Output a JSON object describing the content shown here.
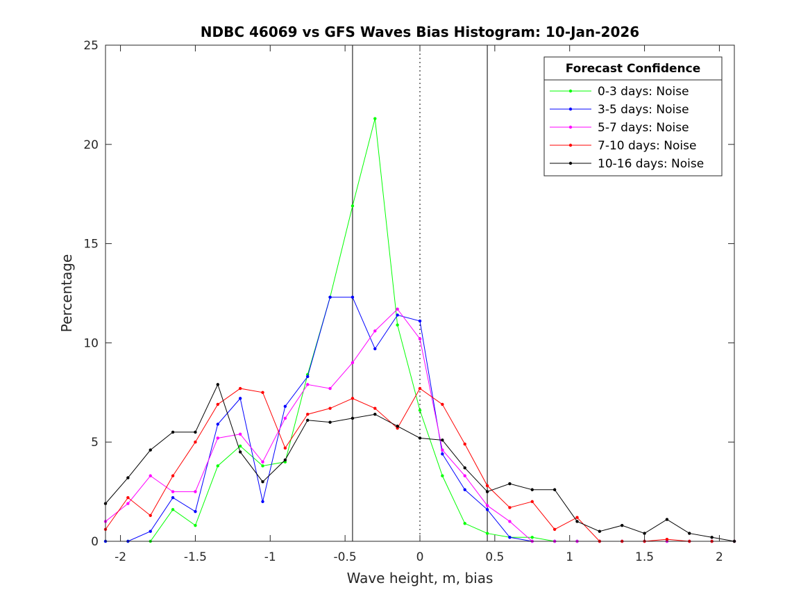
{
  "chart_data": {
    "type": "line",
    "title": "NDBC 46069 vs GFS Waves Bias Histogram: 10-Jan-2026",
    "xlabel": "Wave height, m, bias",
    "ylabel": "Percentage",
    "xlim": [
      -2.1,
      2.1
    ],
    "ylim": [
      0,
      25
    ],
    "xticks": [
      -2,
      -1.5,
      -1,
      -0.5,
      0,
      0.5,
      1,
      1.5,
      2
    ],
    "xtick_labels": [
      "-2",
      "-1.5",
      "-1",
      "-0.5",
      "0",
      "0.5",
      "1",
      "1.5",
      "2"
    ],
    "yticks": [
      0,
      5,
      10,
      15,
      20,
      25
    ],
    "ytick_labels": [
      "0",
      "5",
      "10",
      "15",
      "20",
      "25"
    ],
    "legend_title": "Forecast Confidence",
    "legend_location": "top-right",
    "reference_lines": [
      {
        "x": -0.45,
        "style": "solid"
      },
      {
        "x": 0,
        "style": "dotted"
      },
      {
        "x": 0.45,
        "style": "solid"
      }
    ],
    "x": [
      -2.1,
      -1.95,
      -1.8,
      -1.65,
      -1.5,
      -1.35,
      -1.2,
      -1.05,
      -0.9,
      -0.75,
      -0.6,
      -0.45,
      -0.3,
      -0.15,
      0,
      0.15,
      0.3,
      0.45,
      0.6,
      0.75,
      0.9,
      1.05,
      1.2,
      1.35,
      1.5,
      1.65,
      1.8,
      1.95,
      2.1
    ],
    "series": [
      {
        "name": "0-3 days: Noise",
        "color": "#00ff00",
        "values": [
          0,
          0,
          0,
          1.6,
          0.8,
          3.8,
          4.8,
          3.8,
          4.0,
          8.4,
          12.3,
          16.9,
          21.3,
          10.9,
          6.6,
          3.3,
          0.9,
          0.4,
          0.2,
          0.2,
          0,
          0,
          0,
          0,
          0,
          0,
          0,
          0,
          0
        ]
      },
      {
        "name": "3-5 days: Noise",
        "color": "#0000ff",
        "values": [
          0,
          0,
          0.5,
          2.2,
          1.5,
          5.9,
          7.2,
          2.0,
          6.8,
          8.3,
          12.3,
          12.3,
          9.7,
          11.4,
          11.1,
          4.4,
          2.6,
          1.6,
          0.2,
          0,
          0,
          0,
          0,
          0,
          0,
          0,
          0,
          0,
          0
        ]
      },
      {
        "name": "5-7 days: Noise",
        "color": "#ff00ff",
        "values": [
          1.0,
          1.9,
          3.3,
          2.5,
          2.5,
          5.2,
          5.4,
          4.0,
          6.2,
          7.9,
          7.7,
          9.0,
          10.6,
          11.7,
          10.2,
          4.6,
          3.3,
          1.8,
          1.0,
          0,
          0,
          0,
          0,
          0,
          0,
          0,
          0,
          0,
          0
        ]
      },
      {
        "name": "7-10 days: Noise",
        "color": "#ff0000",
        "values": [
          0.6,
          2.2,
          1.3,
          3.3,
          5.0,
          6.9,
          7.7,
          7.5,
          4.7,
          6.4,
          6.7,
          7.2,
          6.7,
          5.7,
          7.7,
          6.9,
          4.9,
          2.8,
          1.7,
          2.0,
          0.6,
          1.2,
          0,
          0,
          0,
          0.1,
          0,
          0,
          0
        ]
      },
      {
        "name": "10-16 days: Noise",
        "color": "#000000",
        "values": [
          1.9,
          3.2,
          4.6,
          5.5,
          5.5,
          7.9,
          4.5,
          3.0,
          4.1,
          6.1,
          6.0,
          6.2,
          6.4,
          5.8,
          5.2,
          5.1,
          3.7,
          2.5,
          2.9,
          2.6,
          2.6,
          1.0,
          0.5,
          0.8,
          0.4,
          1.1,
          0.4,
          0.2,
          0
        ]
      }
    ]
  }
}
